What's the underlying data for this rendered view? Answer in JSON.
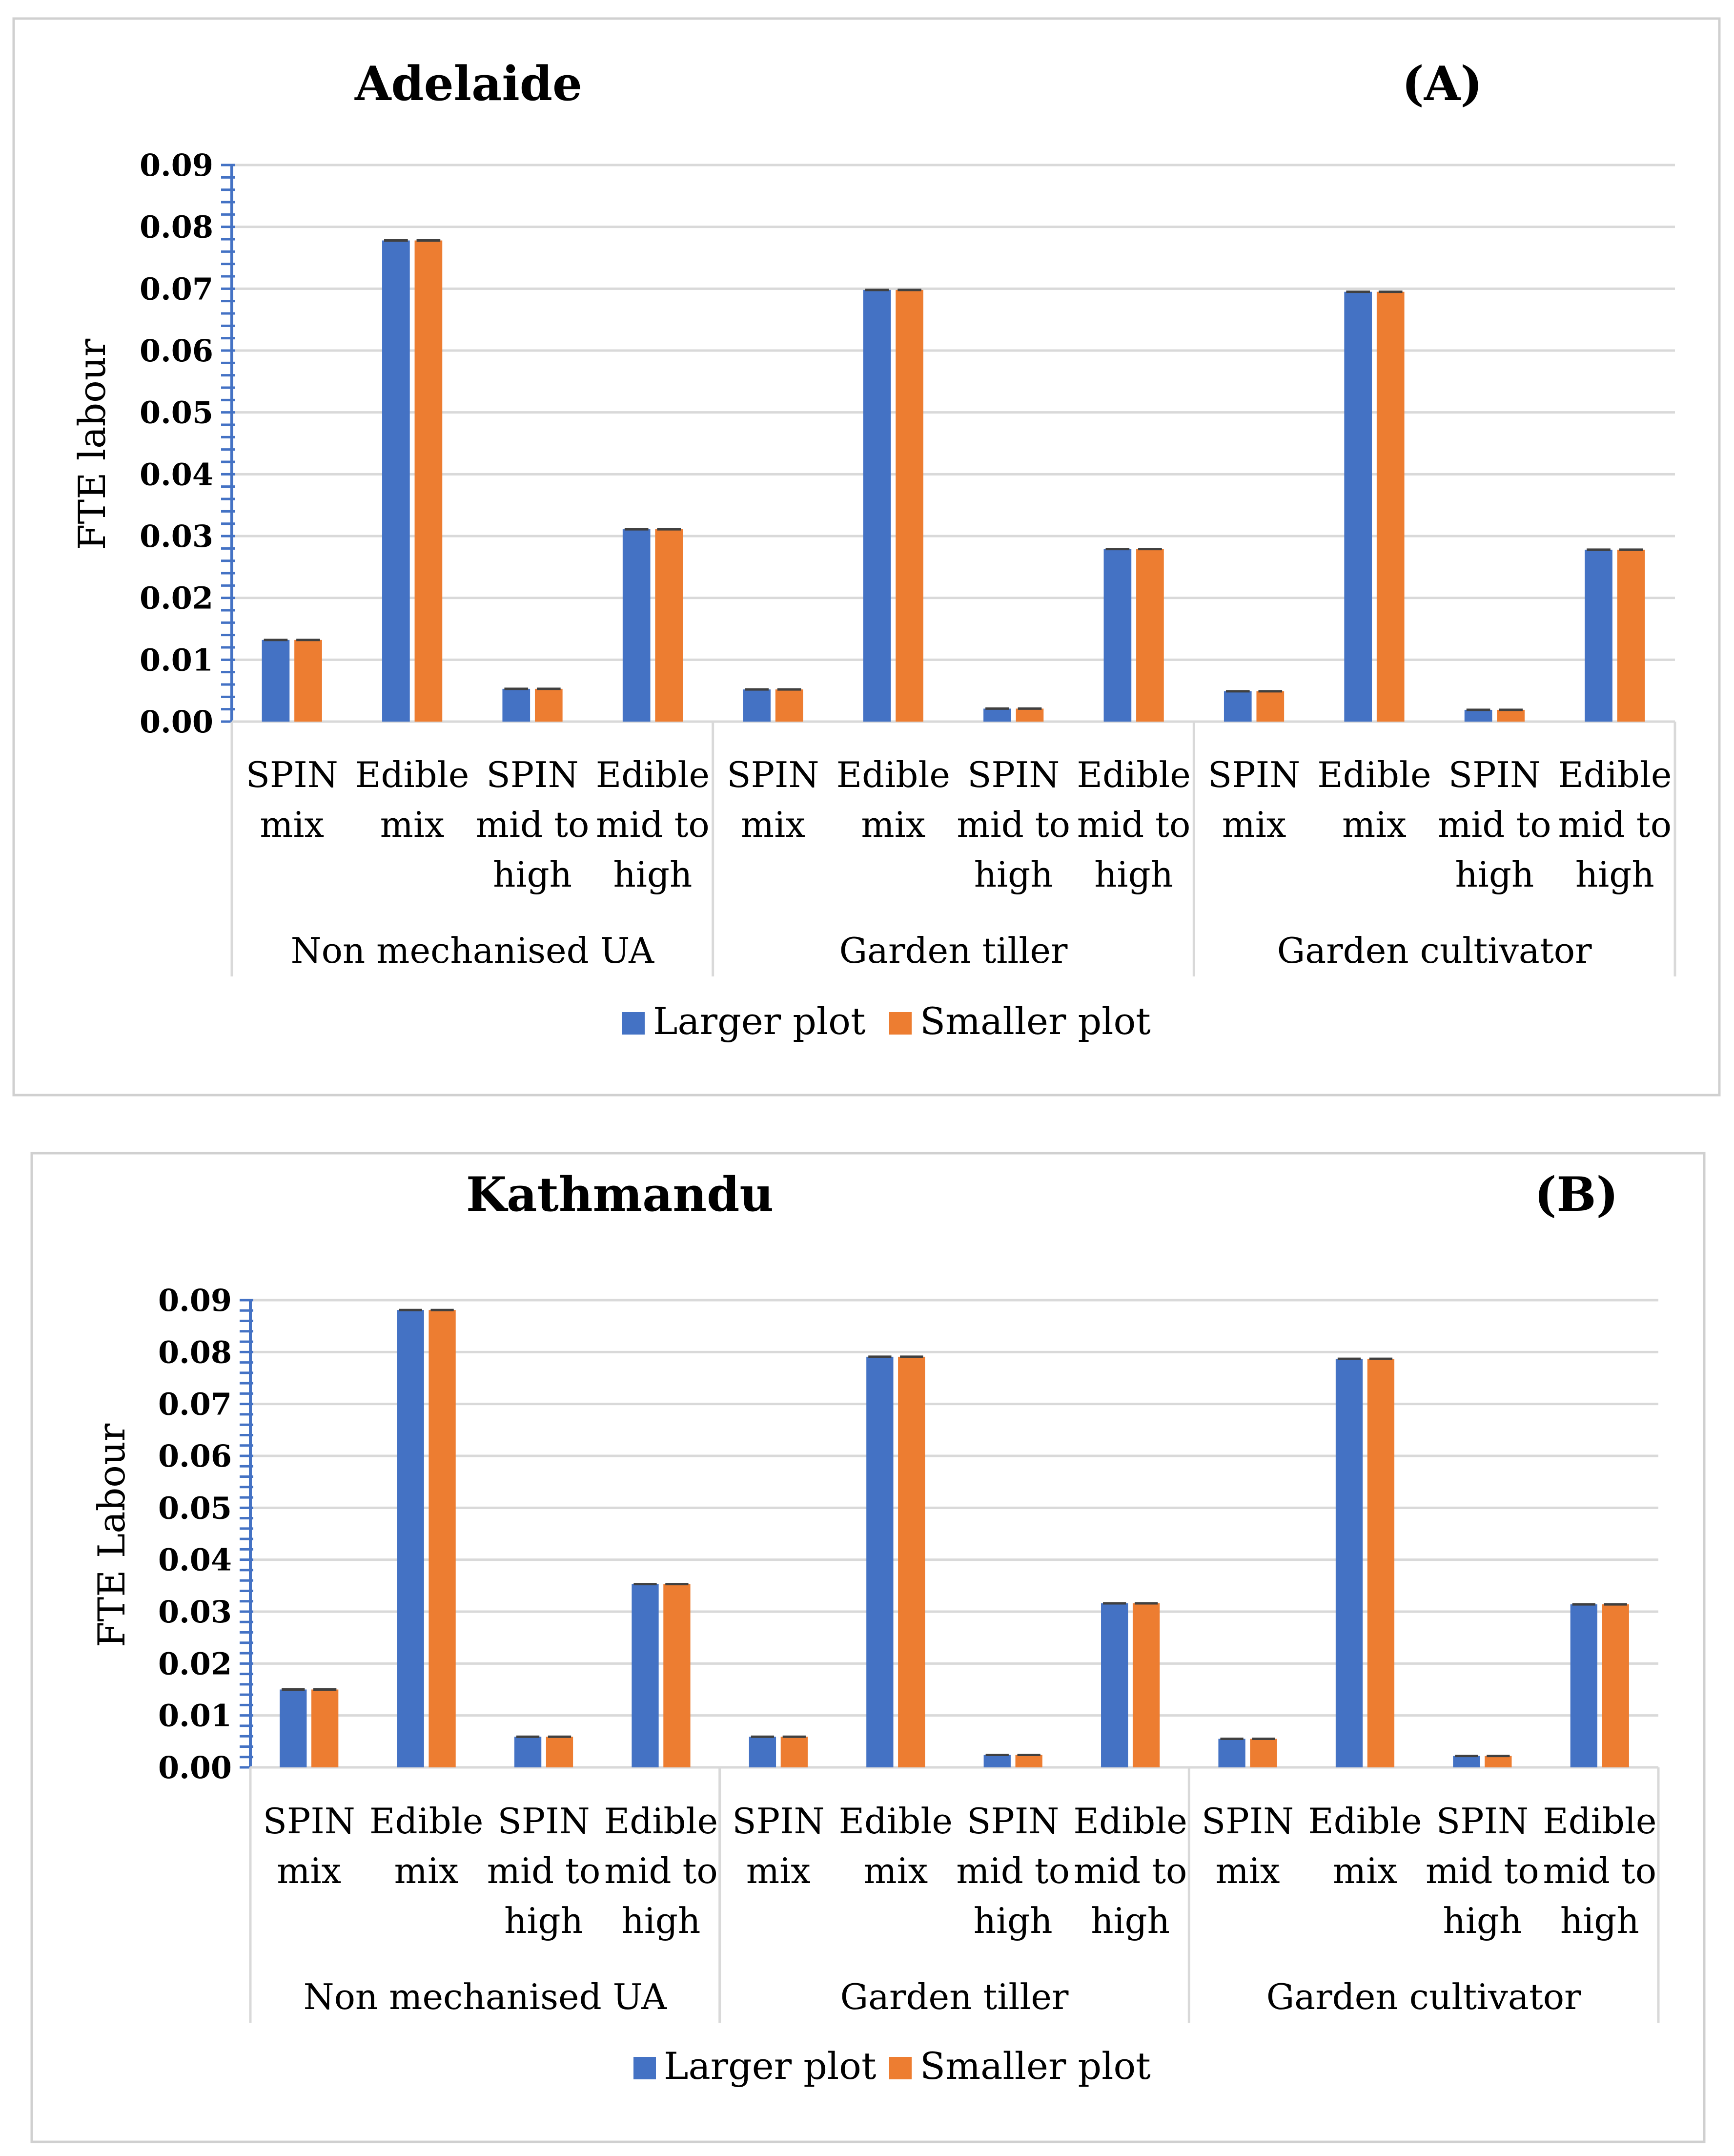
{
  "chart_data": [
    {
      "type": "bar",
      "title": "Adelaide",
      "panel_label": "(A)",
      "ylabel": "FTE labour",
      "xlabel": "",
      "ylim": [
        0,
        0.09
      ],
      "yticks": [
        "0.00",
        "0.01",
        "0.02",
        "0.03",
        "0.04",
        "0.05",
        "0.06",
        "0.07",
        "0.08",
        "0.09"
      ],
      "groups": [
        "Non mechanised UA",
        "Garden tiller",
        "Garden cultivator"
      ],
      "categories": [
        [
          "SPIN",
          "mix"
        ],
        [
          "Edible",
          "mix"
        ],
        [
          "SPIN",
          "mid to",
          "high"
        ],
        [
          "Edible",
          "mid  to",
          "high"
        ],
        [
          "SPIN",
          "mix"
        ],
        [
          "Edible",
          "mix"
        ],
        [
          "SPIN",
          "mid to",
          "high"
        ],
        [
          "Edible",
          "mid  to",
          "high"
        ],
        [
          "SPIN",
          "mix"
        ],
        [
          "Edible",
          "mix"
        ],
        [
          "SPIN",
          "mid to",
          "high"
        ],
        [
          "Edible",
          "mid  to",
          "high"
        ]
      ],
      "series": [
        {
          "name": "Larger plot",
          "color": "#4472C4",
          "values": [
            0.0132,
            0.0778,
            0.0053,
            0.0311,
            0.0052,
            0.0698,
            0.0021,
            0.0279,
            0.0049,
            0.0695,
            0.0019,
            0.0278
          ]
        },
        {
          "name": "Smaller plot",
          "color": "#ED7D31",
          "values": [
            0.0132,
            0.0778,
            0.0053,
            0.0311,
            0.0052,
            0.0698,
            0.0021,
            0.0279,
            0.0049,
            0.0695,
            0.0019,
            0.0278
          ]
        }
      ],
      "legend": [
        "Larger plot",
        "Smaller plot"
      ]
    },
    {
      "type": "bar",
      "title": "Kathmandu",
      "panel_label": "(B)",
      "ylabel": "FTE Labour",
      "xlabel": "",
      "ylim": [
        0,
        0.09
      ],
      "yticks": [
        "0.00",
        "0.01",
        "0.02",
        "0.03",
        "0.04",
        "0.05",
        "0.06",
        "0.07",
        "0.08",
        "0.09"
      ],
      "groups": [
        "Non mechanised UA",
        "Garden tiller",
        "Garden cultivator"
      ],
      "categories": [
        [
          "SPIN",
          "mix"
        ],
        [
          "Edible",
          "mix"
        ],
        [
          "SPIN",
          "mid to",
          "high"
        ],
        [
          "Edible",
          "mid  to",
          "high"
        ],
        [
          "SPIN",
          "mix"
        ],
        [
          "Edible",
          "mix"
        ],
        [
          "SPIN",
          "mid to",
          "high"
        ],
        [
          "Edible",
          "mid  to",
          "high"
        ],
        [
          "SPIN",
          "mix"
        ],
        [
          "Edible",
          "mix"
        ],
        [
          "SPIN",
          "mid to",
          "high"
        ],
        [
          "Edible",
          "mid  to",
          "high"
        ]
      ],
      "series": [
        {
          "name": "Larger plot",
          "color": "#4472C4",
          "values": [
            0.015,
            0.0881,
            0.0059,
            0.0353,
            0.0059,
            0.0791,
            0.0024,
            0.0316,
            0.0055,
            0.0787,
            0.0022,
            0.0314
          ]
        },
        {
          "name": "Smaller plot",
          "color": "#ED7D31",
          "values": [
            0.015,
            0.0881,
            0.0059,
            0.0353,
            0.0059,
            0.0791,
            0.0024,
            0.0316,
            0.0055,
            0.0787,
            0.0022,
            0.0314
          ]
        }
      ],
      "legend": [
        "Larger plot",
        "Smaller plot"
      ]
    }
  ]
}
